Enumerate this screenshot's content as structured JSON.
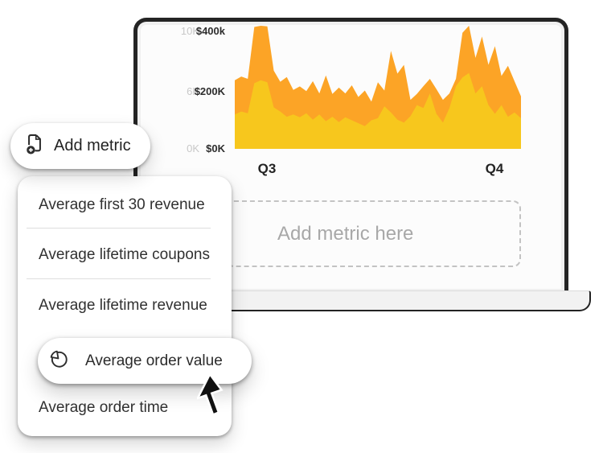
{
  "laptop": {
    "frame_color": "#242424",
    "screen_bg": "#FCFCFC",
    "base_color": "#F2F2F2"
  },
  "chart_data": {
    "type": "area",
    "title": "",
    "xlabel": "",
    "ylabel": "",
    "grid": false,
    "legend": "none",
    "x_ticks": [
      "Q3",
      "Q4"
    ],
    "y_ticks_units": [
      "10K",
      "6K",
      "0K"
    ],
    "y_ticks_dollars": [
      "$400k",
      "$200K",
      "$0K"
    ],
    "ylim_dollars_k": [
      0,
      440
    ],
    "unit": "$k",
    "series": [
      {
        "name": "revenue-orange",
        "color": "#FCA426",
        "values": [
          235,
          248,
          240,
          418,
          422,
          420,
          268,
          230,
          246,
          202,
          214,
          198,
          232,
          190,
          252,
          188,
          210,
          190,
          218,
          178,
          200,
          162,
          228,
          200,
          336,
          258,
          288,
          168,
          188,
          215,
          240,
          205,
          168,
          190,
          240,
          398,
          422,
          312,
          385,
          288,
          352,
          250,
          285,
          232,
          180
        ]
      },
      {
        "name": "order-value-yellow",
        "color": "#F7C71D",
        "values": [
          118,
          128,
          122,
          225,
          235,
          228,
          142,
          128,
          110,
          118,
          108,
          122,
          100,
          118,
          95,
          110,
          92,
          108,
          98,
          88,
          78,
          98,
          105,
          146,
          125,
          100,
          90,
          112,
          150,
          140,
          190,
          120,
          90,
          140,
          215,
          245,
          260,
          190,
          215,
          150,
          120,
          150,
          110,
          125,
          105
        ]
      }
    ]
  },
  "drop_zone": {
    "label": "Add metric here"
  },
  "add_metric_button": {
    "label": "Add metric",
    "icon": "page-plus-icon"
  },
  "dropdown": {
    "items": [
      {
        "label": "Average first 30 revenue",
        "selected": false
      },
      {
        "label": "Average lifetime coupons",
        "selected": false
      },
      {
        "label": "Average lifetime revenue",
        "selected": false
      },
      {
        "label": "Average order value",
        "selected": true,
        "icon": "pie-chart-icon"
      },
      {
        "label": "Average order time",
        "selected": false
      }
    ]
  },
  "cursor": {
    "type": "arrow-pointer"
  }
}
